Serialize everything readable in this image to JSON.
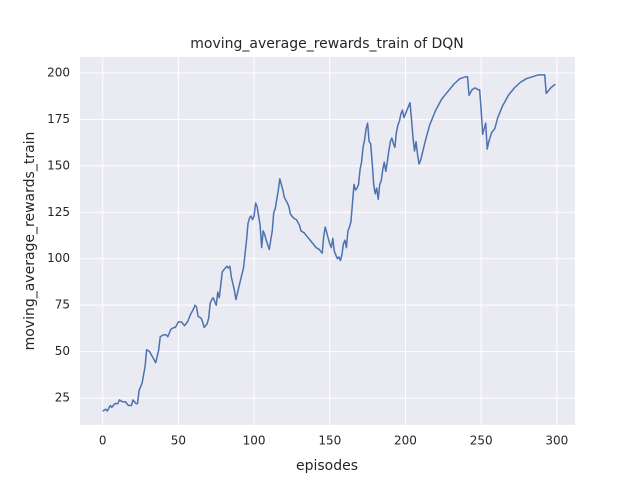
{
  "chart_data": {
    "type": "line",
    "title": "moving_average_rewards_train of DQN",
    "x_label": "episodes",
    "y_label": "moving_average_rewards_train",
    "xlim": [
      -15,
      312
    ],
    "ylim": [
      10.5,
      208.6
    ],
    "xticks": [
      0,
      50,
      100,
      150,
      200,
      250,
      300
    ],
    "yticks": [
      25,
      50,
      75,
      100,
      125,
      150,
      175,
      200
    ],
    "grid": true,
    "series": [
      {
        "name": "DQN",
        "color": "#4c72b0",
        "x": [
          0,
          2,
          3,
          5,
          6,
          8,
          10,
          11,
          13,
          15,
          17,
          19,
          20,
          22,
          23,
          24,
          26,
          28,
          29,
          31,
          33,
          35,
          37,
          38,
          40,
          42,
          43,
          45,
          47,
          48,
          50,
          52,
          54,
          56,
          58,
          60,
          61,
          62,
          63,
          65,
          66,
          67,
          69,
          70,
          71,
          72,
          73,
          75,
          76,
          77,
          78,
          79,
          80,
          82,
          83,
          84,
          85,
          87,
          88,
          90,
          93,
          95,
          96,
          97,
          98,
          99,
          100,
          101,
          102,
          103,
          104,
          105,
          106,
          107,
          108,
          110,
          112,
          113,
          114,
          115,
          116,
          117,
          118,
          119,
          120,
          122,
          123,
          124,
          126,
          128,
          130,
          131,
          133,
          135,
          137,
          139,
          141,
          143,
          145,
          146,
          147,
          148,
          149,
          150,
          151,
          152,
          153,
          154,
          155,
          156,
          157,
          158,
          159,
          160,
          161,
          162,
          163,
          164,
          165,
          166,
          167,
          168,
          169,
          170,
          171,
          172,
          173,
          174,
          175,
          176,
          177,
          178,
          179,
          180,
          181,
          182,
          183,
          184,
          185,
          186,
          187,
          188,
          189,
          190,
          191,
          192,
          193,
          194,
          195,
          196,
          197,
          198,
          199,
          200,
          201,
          202,
          203,
          204,
          205,
          206,
          207,
          208,
          209,
          210,
          213,
          216,
          220,
          224,
          228,
          232,
          236,
          240,
          241,
          242,
          244,
          246,
          248,
          249,
          250,
          251,
          252,
          253,
          254,
          255,
          257,
          259,
          261,
          264,
          268,
          272,
          276,
          280,
          284,
          288,
          292,
          293,
          296,
          299
        ],
        "values": [
          18,
          19,
          18,
          21,
          20,
          22,
          22,
          24,
          23,
          23,
          21,
          21,
          24,
          22,
          22,
          29,
          33,
          42,
          51,
          50,
          47,
          44,
          51,
          58,
          59,
          59,
          58,
          62,
          63,
          63,
          66,
          66,
          64,
          66,
          70,
          73,
          75,
          74,
          69,
          68,
          66,
          63,
          65,
          68,
          76,
          78,
          79,
          75,
          82,
          79,
          86,
          93,
          94,
          96,
          95,
          96,
          90,
          83,
          78,
          85,
          95,
          110,
          119,
          122,
          123,
          121,
          123,
          130,
          128,
          123,
          118,
          106,
          115,
          113,
          110,
          105,
          115,
          125,
          127,
          132,
          137,
          143,
          140,
          137,
          133,
          130,
          128,
          124,
          122,
          121,
          118,
          115,
          114,
          112,
          110,
          108,
          106,
          105,
          103,
          112,
          117,
          114,
          111,
          108,
          106,
          111,
          104,
          102,
          100,
          101,
          99,
          102,
          108,
          110,
          106,
          115,
          117,
          120,
          130,
          140,
          137,
          138,
          140,
          148,
          152,
          160,
          164,
          170,
          173,
          163,
          162,
          152,
          140,
          135,
          138,
          132,
          140,
          142,
          148,
          152,
          147,
          152,
          158,
          163,
          165,
          162,
          160,
          168,
          172,
          174,
          178,
          180,
          176,
          178,
          180,
          182,
          184,
          175,
          165,
          158,
          163,
          156,
          151,
          153,
          163,
          172,
          180,
          186,
          190,
          194,
          197,
          198,
          198,
          188,
          191,
          192,
          191,
          191,
          180,
          167,
          170,
          173,
          159,
          163,
          168,
          170,
          176,
          182,
          188,
          192,
          195,
          197,
          198,
          199,
          199,
          189,
          192,
          194
        ]
      }
    ]
  }
}
